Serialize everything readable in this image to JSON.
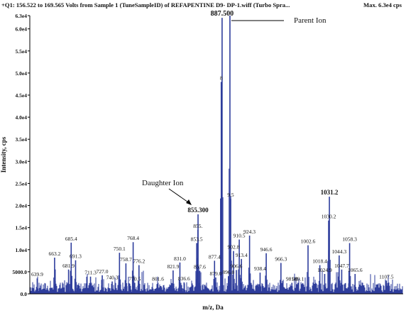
{
  "header": {
    "scan_description": "+Q1: 156.522 to 169.565 Volts from Sample 1 (TuneSampleID) of REFAPENTINE D9- DP-1.wiff (Turbo Spra...",
    "max_intensity": "Max. 6.3e4 cps"
  },
  "annotations": {
    "parent_ion": "Parent Ion",
    "daughter_ion": "Daughter Ion"
  },
  "colors": {
    "trace": "#2e3d9c",
    "axis": "#000000",
    "text": "#111111"
  },
  "chart_data": {
    "type": "line",
    "title": "",
    "xlabel": "m/z, Da",
    "ylabel": "Intensity, cps",
    "xlim": [
      630,
      1130
    ],
    "ylim": [
      0,
      63000
    ],
    "grid": false,
    "y_ticks": [
      {
        "value": 0,
        "label": "0.0"
      },
      {
        "value": 5000,
        "label": "5000.0"
      },
      {
        "value": 10000,
        "label": "1.0e4"
      },
      {
        "value": 15000,
        "label": "1.5e4"
      },
      {
        "value": 20000,
        "label": "2.0e4"
      },
      {
        "value": 25000,
        "label": "2.5e4"
      },
      {
        "value": 30000,
        "label": "3.0e4"
      },
      {
        "value": 35000,
        "label": "3.5e4"
      },
      {
        "value": 40000,
        "label": "4.0e4"
      },
      {
        "value": 45000,
        "label": "4.5e4"
      },
      {
        "value": 50000,
        "label": "5.0e4"
      },
      {
        "value": 55000,
        "label": "5.5e4"
      },
      {
        "value": 60000,
        "label": "6.0e4"
      },
      {
        "value": 63000,
        "label": "6.3e4"
      }
    ],
    "peaks": [
      {
        "mz": 639.9,
        "i": 3500,
        "label": "639.9"
      },
      {
        "mz": 663.2,
        "i": 8200,
        "label": "663.2"
      },
      {
        "mz": 681.9,
        "i": 5500,
        "label": "681.9"
      },
      {
        "mz": 685.4,
        "i": 11600,
        "label": "685.4"
      },
      {
        "mz": 691.3,
        "i": 7600,
        "label": "691.3"
      },
      {
        "mz": 711.3,
        "i": 3900,
        "label": "711.3"
      },
      {
        "mz": 727.0,
        "i": 4200,
        "label": "727.0"
      },
      {
        "mz": 740.3,
        "i": 2800,
        "label": "740.3"
      },
      {
        "mz": 750.1,
        "i": 9300,
        "label": "750.1"
      },
      {
        "mz": 758.7,
        "i": 6900,
        "label": "758.7"
      },
      {
        "mz": 768.4,
        "i": 11700,
        "label": "768.4"
      },
      {
        "mz": 770.5,
        "i": 2500,
        "label": "770.5"
      },
      {
        "mz": 776.2,
        "i": 6500,
        "label": "776.2"
      },
      {
        "mz": 801.6,
        "i": 2500,
        "label": "801.6"
      },
      {
        "mz": 821.9,
        "i": 5300,
        "label": "821.9"
      },
      {
        "mz": 831.0,
        "i": 7100,
        "label": "831.0"
      },
      {
        "mz": 836.6,
        "i": 2600,
        "label": "836.6"
      },
      {
        "mz": 853.5,
        "i": 11500,
        "label": "853.5"
      },
      {
        "mz": 855.1,
        "i": 14500,
        "label": "855."
      },
      {
        "mz": 855.3,
        "i": 18000,
        "label": "855.300"
      },
      {
        "mz": 857.6,
        "i": 5200,
        "label": "857.6"
      },
      {
        "mz": 877.4,
        "i": 7500,
        "label": "877.4"
      },
      {
        "mz": 879.0,
        "i": 3700,
        "label": "879.0"
      },
      {
        "mz": 886.4,
        "i": 48000,
        "label": "8"
      },
      {
        "mz": 887.5,
        "i": 62500,
        "label": "887.500"
      },
      {
        "mz": 896.0,
        "i": 4000,
        "label": "896.0"
      },
      {
        "mz": 898.0,
        "i": 63000,
        "label": ""
      },
      {
        "mz": 899.0,
        "i": 21500,
        "label": "9.5"
      },
      {
        "mz": 902.8,
        "i": 9700,
        "label": "902.8"
      },
      {
        "mz": 906.6,
        "i": 5400,
        "label": "906.6"
      },
      {
        "mz": 910.5,
        "i": 12300,
        "label": "910.5"
      },
      {
        "mz": 913.4,
        "i": 7900,
        "label": "913.4"
      },
      {
        "mz": 924.3,
        "i": 13200,
        "label": "924.3"
      },
      {
        "mz": 938.4,
        "i": 4800,
        "label": "938.4"
      },
      {
        "mz": 946.6,
        "i": 9200,
        "label": "946.6"
      },
      {
        "mz": 966.3,
        "i": 7000,
        "label": "966.3"
      },
      {
        "mz": 981.0,
        "i": 2500,
        "label": "981.0"
      },
      {
        "mz": 989.1,
        "i": 2500,
        "label": "989.1"
      },
      {
        "mz": 1002.6,
        "i": 11000,
        "label": "1002.6"
      },
      {
        "mz": 1018.4,
        "i": 6500,
        "label": "1018.4"
      },
      {
        "mz": 1024.9,
        "i": 4500,
        "label": "1024.9"
      },
      {
        "mz": 1030.2,
        "i": 16600,
        "label": "1030.2"
      },
      {
        "mz": 1031.2,
        "i": 22000,
        "label": "1031.2"
      },
      {
        "mz": 1044.3,
        "i": 8700,
        "label": "1044.3"
      },
      {
        "mz": 1047.7,
        "i": 5500,
        "label": "1047.7"
      },
      {
        "mz": 1058.3,
        "i": 11500,
        "label": "1058.3"
      },
      {
        "mz": 1065.6,
        "i": 4500,
        "label": "1065.6"
      },
      {
        "mz": 1107.5,
        "i": 3000,
        "label": "1107.5"
      }
    ]
  }
}
